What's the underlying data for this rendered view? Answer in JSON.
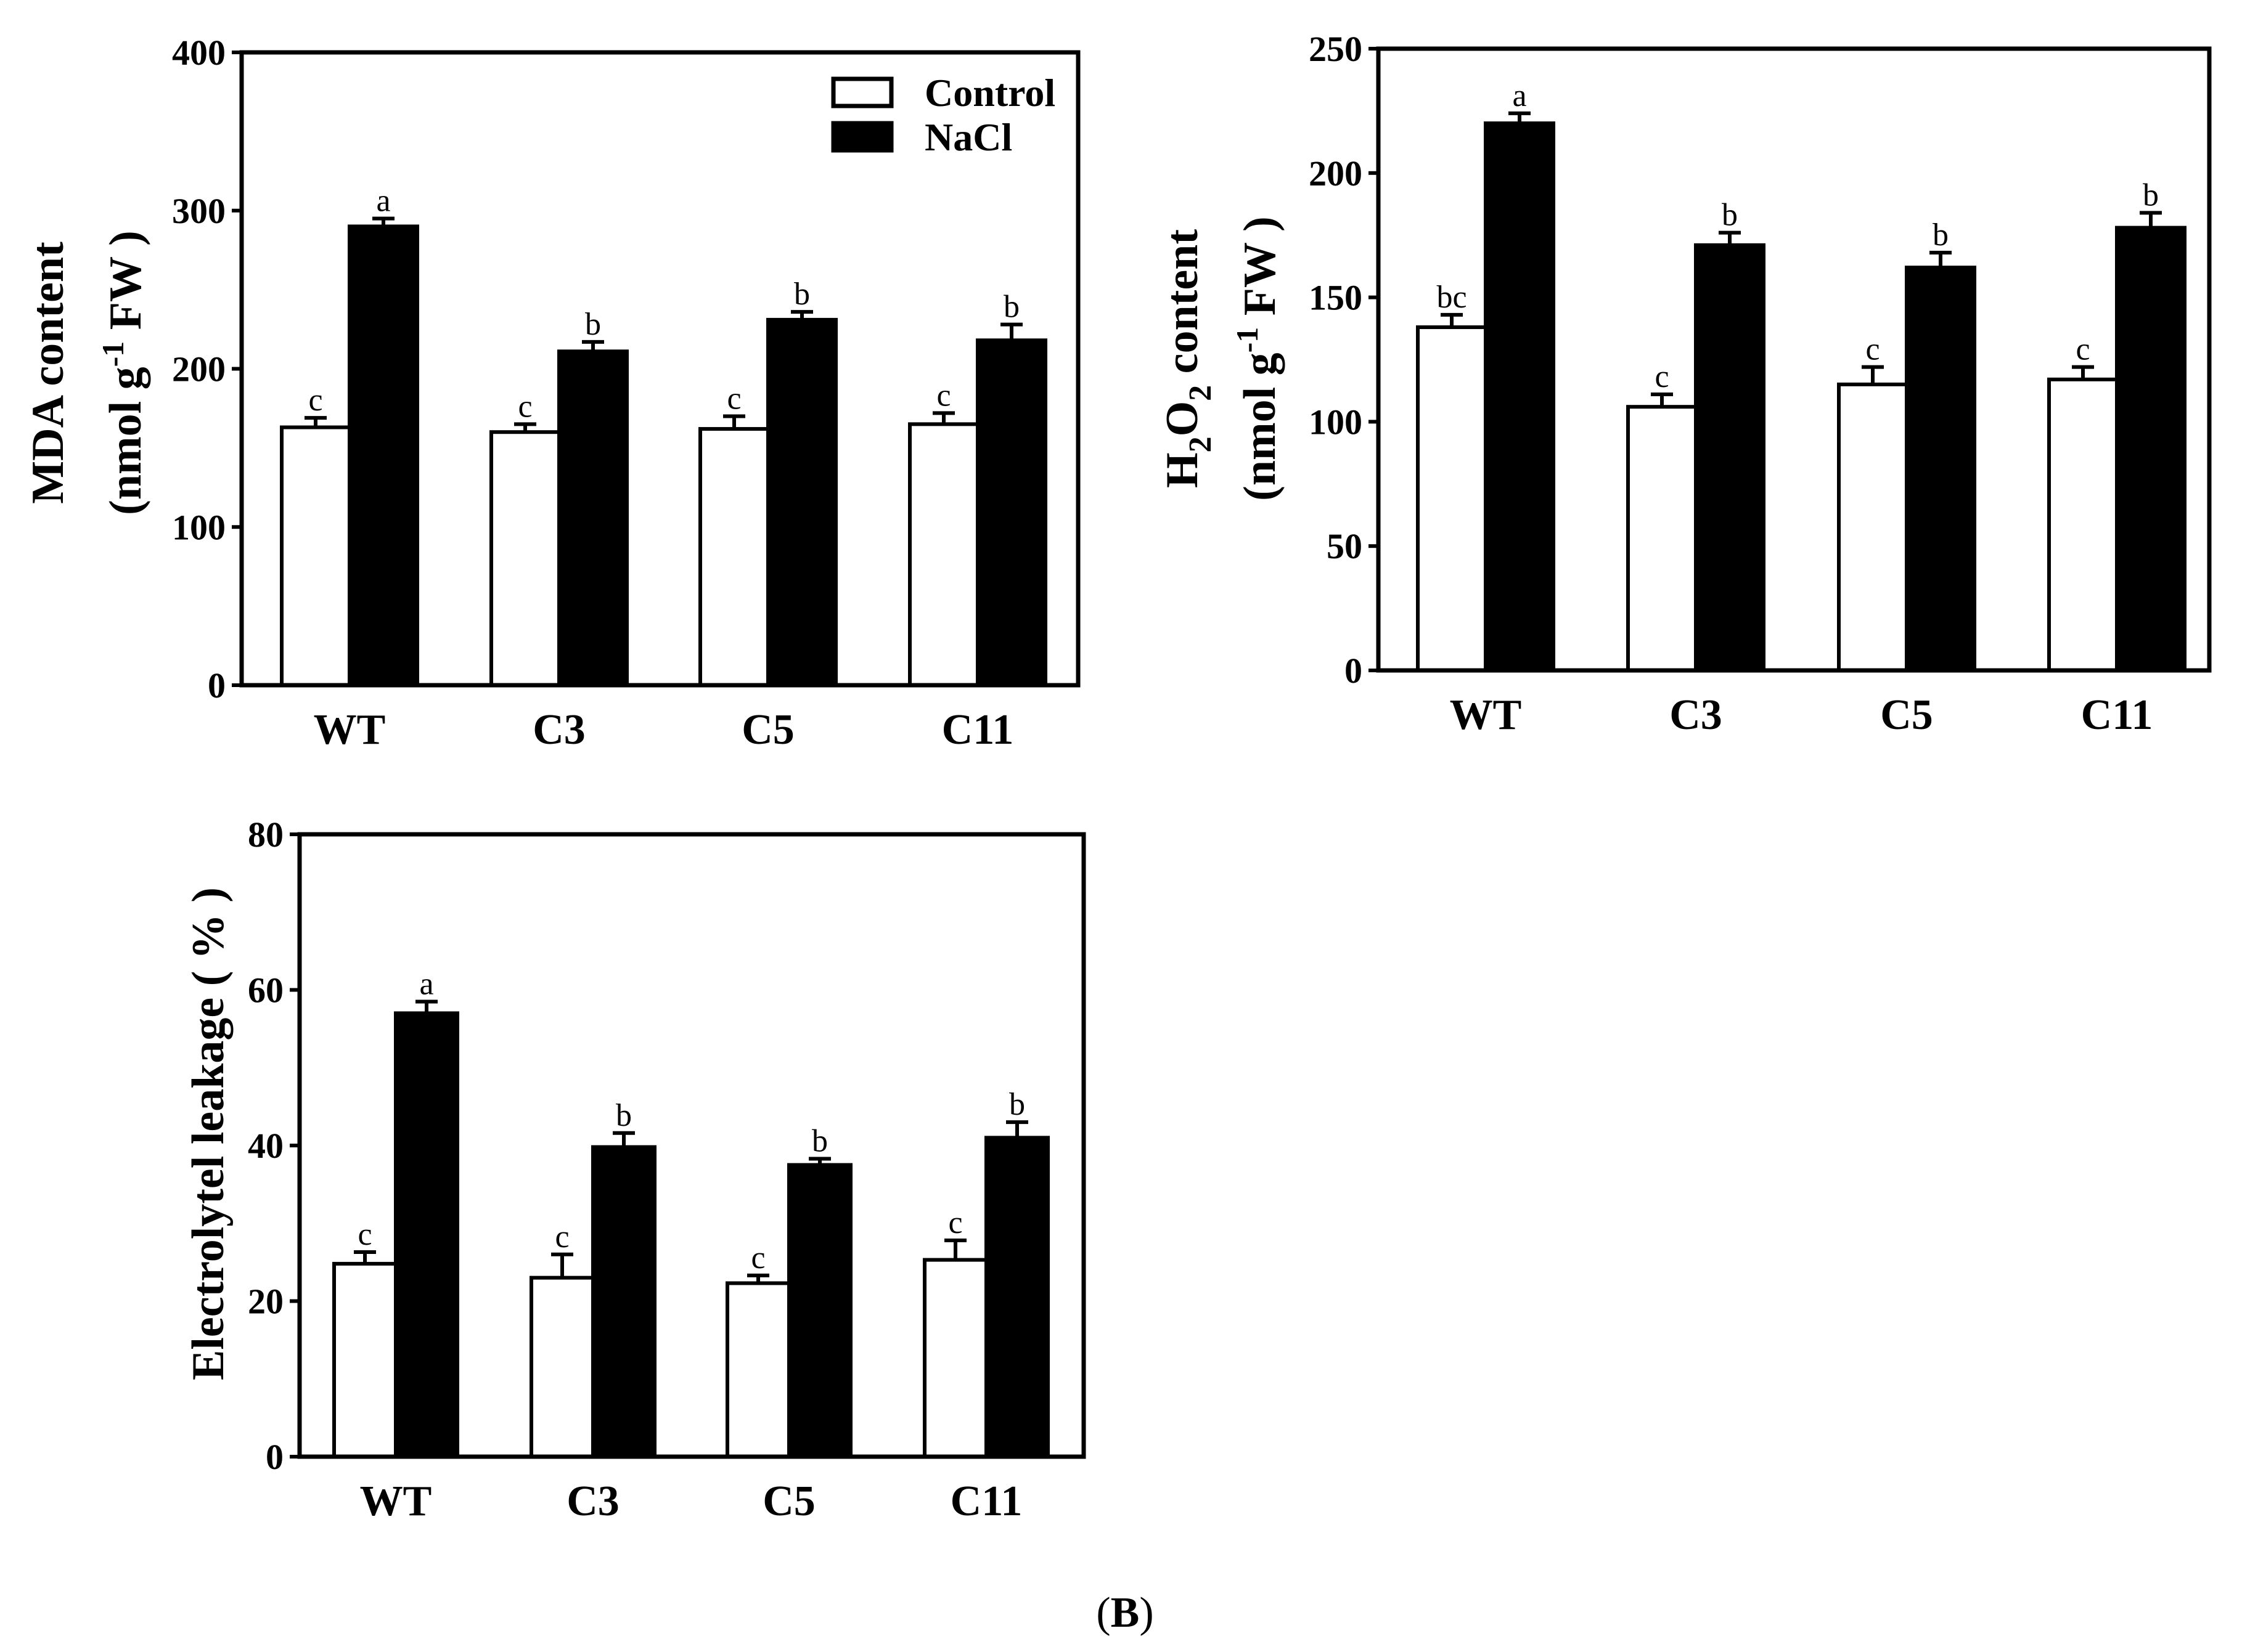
{
  "figure_label": "B",
  "colors": {
    "control": "#ffffff",
    "nacl": "#000000",
    "axis": "#000000"
  },
  "legend": {
    "control": "Control",
    "nacl": "NaCl"
  },
  "chart_data": [
    {
      "id": "mda",
      "type": "bar",
      "categories": [
        "WT",
        "C3",
        "C5",
        "C11"
      ],
      "series": [
        {
          "name": "Control",
          "values": [
            163,
            160,
            162,
            165
          ],
          "errors": [
            6,
            5,
            8,
            7
          ],
          "letters": [
            "c",
            "c",
            "c",
            "c"
          ]
        },
        {
          "name": "NaCl",
          "values": [
            290,
            211,
            231,
            218
          ],
          "errors": [
            5,
            6,
            5,
            10
          ],
          "letters": [
            "a",
            "b",
            "b",
            "b"
          ]
        }
      ],
      "ylim": [
        0,
        400
      ],
      "yticks": [
        0,
        100,
        200,
        300,
        400
      ],
      "ylabel": {
        "line1": "MDA content",
        "line2_pre": "(nmol g",
        "line2_sup": "-1",
        "line2_post": " FW )"
      },
      "xlabel": "",
      "legend_position": "top-right"
    },
    {
      "id": "h2o2",
      "type": "bar",
      "categories": [
        "WT",
        "C3",
        "C5",
        "C11"
      ],
      "series": [
        {
          "name": "Control",
          "values": [
            138,
            106,
            115,
            117
          ],
          "errors": [
            5,
            5,
            7,
            5
          ],
          "letters": [
            "bc",
            "c",
            "c",
            "c"
          ]
        },
        {
          "name": "NaCl",
          "values": [
            220,
            171,
            162,
            178
          ],
          "errors": [
            4,
            5,
            6,
            6
          ],
          "letters": [
            "a",
            "b",
            "b",
            "b"
          ]
        }
      ],
      "ylim": [
        0,
        250
      ],
      "yticks": [
        0,
        50,
        100,
        150,
        200,
        250
      ],
      "ylabel": {
        "line1_a": "H",
        "line1_sub1": "2",
        "line1_b": "O",
        "line1_sub2": "2",
        "line1_c": " content",
        "line2_pre": "(nmol g",
        "line2_sup": "-1",
        "line2_post": " FW )"
      },
      "xlabel": ""
    },
    {
      "id": "el",
      "type": "bar",
      "categories": [
        "WT",
        "C3",
        "C5",
        "C11"
      ],
      "series": [
        {
          "name": "Control",
          "values": [
            24.8,
            23,
            22.3,
            25.3
          ],
          "errors": [
            1.5,
            3,
            1,
            2.5
          ],
          "letters": [
            "c",
            "c",
            "c",
            "c"
          ]
        },
        {
          "name": "NaCl",
          "values": [
            57,
            39.8,
            37.5,
            41
          ],
          "errors": [
            1.5,
            1.8,
            0.8,
            2
          ],
          "letters": [
            "a",
            "b",
            "b",
            "b"
          ]
        }
      ],
      "ylim": [
        0,
        80
      ],
      "yticks": [
        0,
        20,
        40,
        60,
        80
      ],
      "ylabel": {
        "line1": "Electrolytel leakage ( % )"
      },
      "xlabel": ""
    }
  ]
}
